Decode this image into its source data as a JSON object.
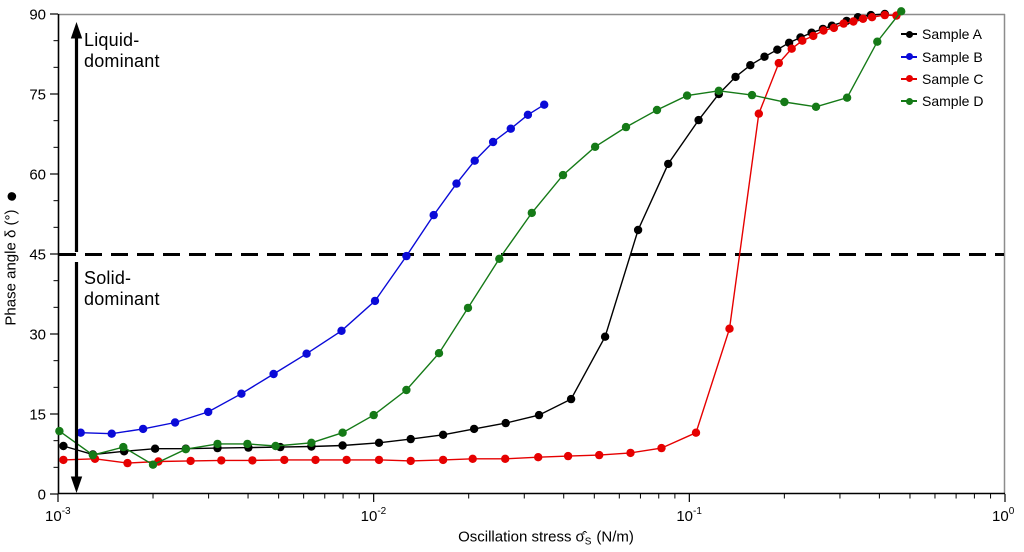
{
  "figure": {
    "x_axis": {
      "tick_base": "10",
      "tick_exponents": [
        -3,
        -2,
        -1,
        0
      ],
      "label_prefix": "Oscillation stress",
      "label_symbol": "σ̂",
      "label_subscript": "S",
      "label_units": "(N/m)"
    },
    "y_axis": {
      "label": "Phase angle δ (°)",
      "label_marker": "●",
      "ticks": [
        0,
        15,
        30,
        45,
        60,
        75,
        90
      ],
      "minor_tick_step": 5
    },
    "annotations": {
      "liquid": "Liquid-dominant",
      "solid": "Solid-dominant"
    },
    "colors": {
      "axis": "#000000",
      "frame": "#8c8c8c",
      "threshold": "#000000"
    }
  },
  "chart_data": {
    "type": "line",
    "x_scale": "log",
    "xlim": [
      0.001,
      1.0
    ],
    "ylim": [
      0,
      90
    ],
    "xlabel": "Oscillation stress σ̂S (N/m)",
    "ylabel": "Phase angle δ (°)",
    "grid": false,
    "legend_position": "top-right-inside",
    "threshold": {
      "y": 45,
      "style": "dashed",
      "meaning_above": "Liquid-dominant",
      "meaning_below": "Solid-dominant"
    },
    "series": [
      {
        "name": "Sample A",
        "color": "#000000",
        "points": [
          [
            0.00104,
            9.0
          ],
          [
            0.00129,
            7.4
          ],
          [
            0.00162,
            8.0
          ],
          [
            0.00203,
            8.5
          ],
          [
            0.00254,
            8.5
          ],
          [
            0.0032,
            8.6
          ],
          [
            0.00401,
            8.7
          ],
          [
            0.00506,
            8.8
          ],
          [
            0.00635,
            8.9
          ],
          [
            0.00797,
            9.1
          ],
          [
            0.0104,
            9.6
          ],
          [
            0.0131,
            10.3
          ],
          [
            0.0166,
            11.1
          ],
          [
            0.0208,
            12.2
          ],
          [
            0.0262,
            13.3
          ],
          [
            0.0334,
            14.8
          ],
          [
            0.0422,
            17.8
          ],
          [
            0.0541,
            29.5
          ],
          [
            0.0688,
            49.5
          ],
          [
            0.0857,
            61.9
          ],
          [
            0.107,
            70.1
          ],
          [
            0.124,
            75.0
          ],
          [
            0.14,
            78.2
          ],
          [
            0.156,
            80.4
          ],
          [
            0.173,
            82.0
          ],
          [
            0.19,
            83.3
          ],
          [
            0.207,
            84.6
          ],
          [
            0.225,
            85.6
          ],
          [
            0.244,
            86.5
          ],
          [
            0.265,
            87.2
          ],
          [
            0.283,
            87.8
          ],
          [
            0.315,
            88.7
          ],
          [
            0.342,
            89.4
          ],
          [
            0.376,
            89.8
          ],
          [
            0.416,
            90.0
          ]
        ]
      },
      {
        "name": "Sample B",
        "color": "#0a0ad8",
        "points": [
          [
            0.00118,
            11.5
          ],
          [
            0.00148,
            11.3
          ],
          [
            0.00186,
            12.2
          ],
          [
            0.00235,
            13.4
          ],
          [
            0.00299,
            15.4
          ],
          [
            0.00381,
            18.8
          ],
          [
            0.00482,
            22.5
          ],
          [
            0.00613,
            26.3
          ],
          [
            0.00791,
            30.6
          ],
          [
            0.0101,
            36.2
          ],
          [
            0.0127,
            44.6
          ],
          [
            0.0155,
            52.3
          ],
          [
            0.0183,
            58.2
          ],
          [
            0.0209,
            62.5
          ],
          [
            0.0239,
            66.0
          ],
          [
            0.0272,
            68.5
          ],
          [
            0.0308,
            71.1
          ],
          [
            0.0347,
            73.0
          ]
        ]
      },
      {
        "name": "Sample C",
        "color": "#e60000",
        "points": [
          [
            0.00104,
            6.4
          ],
          [
            0.00131,
            6.6
          ],
          [
            0.00166,
            5.8
          ],
          [
            0.00208,
            6.1
          ],
          [
            0.00263,
            6.2
          ],
          [
            0.00329,
            6.3
          ],
          [
            0.00413,
            6.3
          ],
          [
            0.00521,
            6.4
          ],
          [
            0.00654,
            6.4
          ],
          [
            0.00821,
            6.4
          ],
          [
            0.0104,
            6.4
          ],
          [
            0.0131,
            6.2
          ],
          [
            0.0166,
            6.4
          ],
          [
            0.0206,
            6.6
          ],
          [
            0.0261,
            6.6
          ],
          [
            0.0332,
            6.9
          ],
          [
            0.0413,
            7.1
          ],
          [
            0.0518,
            7.3
          ],
          [
            0.0651,
            7.7
          ],
          [
            0.0816,
            8.6
          ],
          [
            0.105,
            11.5
          ],
          [
            0.134,
            31.0
          ],
          [
            0.166,
            71.3
          ],
          [
            0.192,
            80.8
          ],
          [
            0.211,
            83.5
          ],
          [
            0.228,
            85.0
          ],
          [
            0.247,
            85.9
          ],
          [
            0.266,
            86.9
          ],
          [
            0.287,
            87.4
          ],
          [
            0.308,
            88.2
          ],
          [
            0.331,
            88.6
          ],
          [
            0.355,
            89.1
          ],
          [
            0.379,
            89.4
          ],
          [
            0.416,
            89.8
          ],
          [
            0.453,
            89.7
          ]
        ]
      },
      {
        "name": "Sample D",
        "color": "#157a17",
        "points": [
          [
            0.00101,
            11.8
          ],
          [
            0.00129,
            7.3
          ],
          [
            0.00161,
            8.8
          ],
          [
            0.002,
            5.5
          ],
          [
            0.00254,
            8.4
          ],
          [
            0.0032,
            9.4
          ],
          [
            0.00398,
            9.4
          ],
          [
            0.00489,
            9.0
          ],
          [
            0.00635,
            9.6
          ],
          [
            0.00797,
            11.5
          ],
          [
            0.01,
            14.8
          ],
          [
            0.0127,
            19.5
          ],
          [
            0.0161,
            26.4
          ],
          [
            0.0199,
            34.9
          ],
          [
            0.025,
            44.1
          ],
          [
            0.0317,
            52.7
          ],
          [
            0.0398,
            59.8
          ],
          [
            0.0503,
            65.1
          ],
          [
            0.063,
            68.8
          ],
          [
            0.079,
            72.0
          ],
          [
            0.0984,
            74.7
          ],
          [
            0.124,
            75.6
          ],
          [
            0.158,
            74.8
          ],
          [
            0.2,
            73.5
          ],
          [
            0.252,
            72.6
          ],
          [
            0.316,
            74.3
          ],
          [
            0.394,
            84.8
          ],
          [
            0.469,
            90.5
          ]
        ]
      }
    ]
  }
}
